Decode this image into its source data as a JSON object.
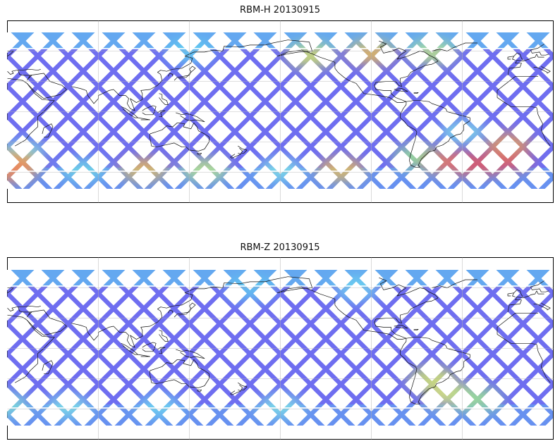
{
  "maps": [
    {
      "title": "RBM-H 20130915",
      "swath_color": "#6f6ef0",
      "hotspots": [
        {
          "lon": 30,
          "lat": -40,
          "color": "#7fe6e6"
        },
        {
          "lon": 25,
          "lat": -52,
          "color": "#f2c14a"
        },
        {
          "lon": 22,
          "lat": -57,
          "color": "#f07c5a"
        },
        {
          "lon": 70,
          "lat": -57,
          "color": "#6fe0e6"
        },
        {
          "lon": 110,
          "lat": -57,
          "color": "#f2c14a"
        },
        {
          "lon": 150,
          "lat": -57,
          "color": "#bff080"
        },
        {
          "lon": 200,
          "lat": -57,
          "color": "#7fe6e6"
        },
        {
          "lon": 240,
          "lat": -57,
          "color": "#f2c14a"
        },
        {
          "lon": 290,
          "lat": -45,
          "color": "#9ff08a"
        },
        {
          "lon": 310,
          "lat": -50,
          "color": "#f07c5a"
        },
        {
          "lon": 330,
          "lat": -52,
          "color": "#e85a5a"
        },
        {
          "lon": 350,
          "lat": -48,
          "color": "#e85a5a"
        },
        {
          "lon": 350,
          "lat": -32,
          "color": "#f0a050"
        },
        {
          "lon": 220,
          "lat": 55,
          "color": "#d8ee60"
        },
        {
          "lon": 260,
          "lat": 58,
          "color": "#f0c44a"
        },
        {
          "lon": 300,
          "lat": 58,
          "color": "#c0ee80"
        },
        {
          "lon": 140,
          "lat": 58,
          "color": "#5fd8f0"
        },
        {
          "lon": 320,
          "lat": -20,
          "color": "#7fe6e6"
        }
      ]
    },
    {
      "title": "RBM-Z 20130915",
      "swath_color": "#6f6ef0",
      "hotspots": [
        {
          "lon": 20,
          "lat": -55,
          "color": "#7fe6d6"
        },
        {
          "lon": 60,
          "lat": -57,
          "color": "#7fe6e6"
        },
        {
          "lon": 120,
          "lat": -57,
          "color": "#6fdcf0"
        },
        {
          "lon": 200,
          "lat": -57,
          "color": "#7fe6e6"
        },
        {
          "lon": 300,
          "lat": -30,
          "color": "#d8ee60"
        },
        {
          "lon": 310,
          "lat": -45,
          "color": "#e0ee70"
        },
        {
          "lon": 330,
          "lat": -50,
          "color": "#a0f08a"
        },
        {
          "lon": 250,
          "lat": 58,
          "color": "#6fdcf0"
        },
        {
          "lon": 180,
          "lat": 58,
          "color": "#5fd0f0"
        }
      ]
    }
  ]
}
